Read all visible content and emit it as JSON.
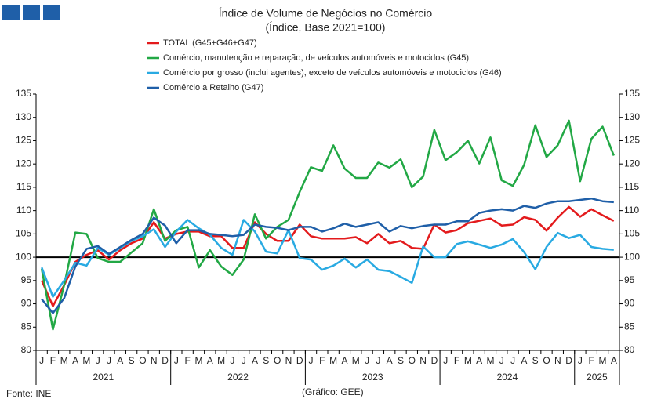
{
  "chart_data": {
    "type": "line",
    "title": "Índice de Volume de Negócios no Comércio",
    "subtitle": "(Índice, Base 2021=100)",
    "source": "Fonte: INE",
    "credit": "(Gráfico: GEE)",
    "categories": [
      "J",
      "F",
      "M",
      "A",
      "M",
      "J",
      "J",
      "A",
      "S",
      "O",
      "N",
      "D",
      "J",
      "F",
      "M",
      "A",
      "M",
      "J",
      "J",
      "A",
      "S",
      "O",
      "N",
      "D",
      "J",
      "F",
      "M",
      "A",
      "M",
      "J",
      "J",
      "A",
      "S",
      "O",
      "N",
      "D",
      "J",
      "F",
      "M",
      "A",
      "M",
      "J",
      "J",
      "A",
      "S",
      "O",
      "N",
      "D",
      "J",
      "F",
      "M",
      "A"
    ],
    "groups": [
      "2021",
      "2022",
      "2023",
      "2024",
      "2025"
    ],
    "ylim": [
      80,
      135
    ],
    "yticks": [
      80,
      85,
      90,
      95,
      100,
      105,
      110,
      115,
      120,
      125,
      130,
      135
    ],
    "reference_line": 100,
    "series": [
      {
        "name": "TOTAL (G45+G46+G47)",
        "color": "#e31a1c",
        "values": [
          95,
          89.5,
          94,
          99,
          100.5,
          101.5,
          99.5,
          101.5,
          103,
          104,
          107.5,
          104,
          105,
          105.5,
          105.5,
          104.5,
          104.5,
          102,
          102,
          107.5,
          105,
          103.5,
          103.5,
          107,
          104.5,
          104,
          104,
          104,
          104.3,
          103,
          105,
          103,
          103.5,
          102,
          101.8,
          107,
          105.3,
          105.8,
          107.3,
          107.8,
          108.3,
          106.8,
          107,
          108.6,
          108,
          105.7,
          108.5,
          110.8,
          108.7,
          110.3,
          109,
          107.8
        ]
      },
      {
        "name": "Comércio, manutenção e reparação, de veículos automóveis e motocidos (G45)",
        "color": "#22a845",
        "values": [
          97.5,
          84.5,
          94,
          105.3,
          105,
          99.8,
          99,
          99,
          101,
          103,
          110.3,
          103.5,
          105.8,
          106.5,
          97.8,
          101.5,
          98,
          96.2,
          99.5,
          109.2,
          104,
          106.5,
          108,
          114,
          119.3,
          118.5,
          124,
          119,
          117,
          117,
          120.3,
          119.2,
          121,
          115,
          117.3,
          127.3,
          120.8,
          122.5,
          125,
          120.1,
          125.7,
          116.5,
          115.3,
          119.8,
          128.3,
          121.5,
          124,
          129.3,
          116.3,
          125.4,
          128,
          121.8
        ]
      },
      {
        "name": "Comércio por grosso (inclui agentes), exceto de veículos automóveis e motociclos (G46)",
        "color": "#29aae2",
        "values": [
          97.8,
          91.5,
          95,
          98.8,
          98.2,
          102,
          100.5,
          102,
          103.5,
          104.5,
          106,
          102.2,
          105.5,
          108,
          106.2,
          104.8,
          102,
          100.5,
          108,
          105.5,
          101.2,
          100.8,
          105.8,
          99.8,
          99.5,
          97.3,
          98.2,
          99.7,
          97.8,
          99.5,
          97.3,
          97,
          95.8,
          94.5,
          102.3,
          100,
          100,
          102.8,
          103.4,
          102.7,
          102,
          102.7,
          103.9,
          101.1,
          97.4,
          102.2,
          105.2,
          104.1,
          104.8,
          102.2,
          101.8,
          101.6
        ]
      },
      {
        "name": "Comércio a Retalho (G47)",
        "color": "#1f5fa8",
        "values": [
          91,
          88,
          91.2,
          98,
          101.8,
          102.4,
          100.7,
          102.2,
          103.7,
          105,
          108.5,
          106.8,
          103,
          105.8,
          105.8,
          105,
          104.8,
          104.5,
          104.8,
          107,
          106.5,
          106.3,
          105.8,
          106.5,
          106.5,
          105.5,
          106.2,
          107.2,
          106.5,
          107,
          107.5,
          105.5,
          106.7,
          106.2,
          106.7,
          107,
          107,
          107.7,
          107.7,
          109.5,
          110,
          110.3,
          110,
          111,
          110.6,
          111.5,
          112,
          112,
          112.3,
          112.6,
          112,
          111.8
        ]
      }
    ]
  }
}
